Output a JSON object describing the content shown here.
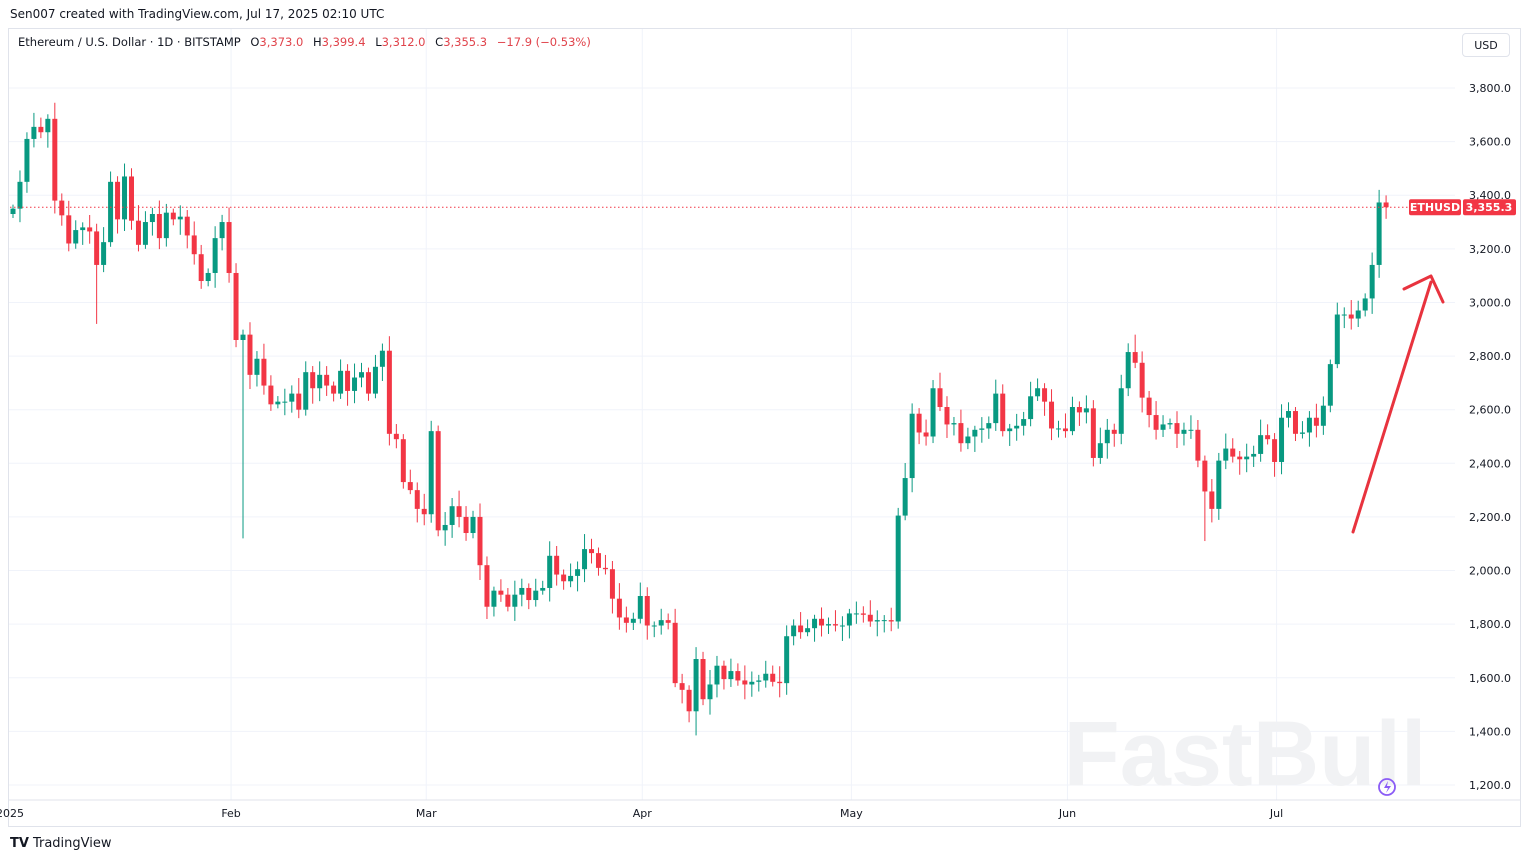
{
  "credit": "Sen007 created with TradingView.com, Jul 17, 2025 02:10 UTC",
  "legend": {
    "symbol": "Ethereum / U.S. Dollar · 1D · BITSTAMP",
    "o_label": "O",
    "o": "3,373.0",
    "h_label": "H",
    "h": "3,399.4",
    "l_label": "L",
    "l": "3,312.0",
    "c_label": "C",
    "c": "3,355.3",
    "change": "−17.9 (−0.53%)"
  },
  "currency": "USD",
  "footer": {
    "brand": "TradingView",
    "logo": "TV"
  },
  "watermark": "FastBull",
  "price_badge": {
    "ticker": "ETHUSD",
    "price": "3,355.3"
  },
  "colors": {
    "up": "#089981",
    "down": "#f23645",
    "arrow": "#e8333e",
    "grid": "#f0f3fa"
  },
  "chart_data": {
    "type": "candlestick",
    "title": "Ethereum / U.S. Dollar · 1D · BITSTAMP",
    "start_date": "2025-01-01",
    "interval": "1D",
    "ylim": [
      1150,
      3950
    ],
    "y_ticks": [
      1200,
      1400,
      1600,
      1800,
      2000,
      2200,
      2400,
      2600,
      2800,
      3000,
      3200,
      3400,
      3600,
      3800
    ],
    "y_tick_labels": [
      "1,200.0",
      "1,400.0",
      "1,600.0",
      "1,800.0",
      "2,000.0",
      "2,200.0",
      "2,400.0",
      "2,600.0",
      "2,800.0",
      "3,000.0",
      "3,200.0",
      "3,400.0",
      "3,600.0",
      "3,800.0"
    ],
    "x_ticks": [
      {
        "label": "2025",
        "day": 0
      },
      {
        "label": "Feb",
        "day": 31
      },
      {
        "label": "Mar",
        "day": 59
      },
      {
        "label": "Apr",
        "day": 90
      },
      {
        "label": "May",
        "day": 120
      },
      {
        "label": "Jun",
        "day": 151
      },
      {
        "label": "Jul",
        "day": 181
      }
    ],
    "first_open": 3330,
    "close": [
      3350,
      3450,
      3610,
      3655,
      3635,
      3685,
      3380,
      3325,
      3220,
      3270,
      3280,
      3265,
      3140,
      3225,
      3450,
      3310,
      3470,
      3305,
      3215,
      3300,
      3330,
      3240,
      3335,
      3310,
      3320,
      3250,
      3180,
      3080,
      3110,
      3240,
      3300,
      3110,
      2860,
      2880,
      2730,
      2790,
      2690,
      2620,
      2630,
      2630,
      2660,
      2600,
      2740,
      2680,
      2730,
      2690,
      2660,
      2745,
      2670,
      2720,
      2740,
      2660,
      2760,
      2820,
      2510,
      2490,
      2330,
      2300,
      2230,
      2210,
      2520,
      2150,
      2170,
      2240,
      2200,
      2140,
      2200,
      2020,
      1865,
      1925,
      1910,
      1865,
      1910,
      1935,
      1890,
      1925,
      1935,
      2055,
      1985,
      1960,
      1980,
      2005,
      2080,
      2065,
      2010,
      2005,
      1895,
      1825,
      1805,
      1820,
      1905,
      1795,
      1795,
      1815,
      1805,
      1580,
      1555,
      1475,
      1670,
      1520,
      1575,
      1645,
      1595,
      1625,
      1590,
      1575,
      1585,
      1590,
      1615,
      1585,
      1580,
      1755,
      1795,
      1770,
      1785,
      1820,
      1795,
      1800,
      1795,
      1795,
      1840,
      1840,
      1835,
      1810,
      1815,
      1815,
      1810,
      2205,
      2345,
      2585,
      2515,
      2500,
      2680,
      2610,
      2545,
      2550,
      2475,
      2500,
      2525,
      2530,
      2550,
      2660,
      2520,
      2530,
      2540,
      2565,
      2650,
      2680,
      2630,
      2530,
      2530,
      2520,
      2610,
      2590,
      2605,
      2420,
      2475,
      2525,
      2510,
      2680,
      2815,
      2775,
      2645,
      2580,
      2525,
      2545,
      2550,
      2510,
      2525,
      2525,
      2410,
      2295,
      2230,
      2410,
      2455,
      2425,
      2415,
      2425,
      2435,
      2505,
      2490,
      2405,
      2570,
      2595,
      2510,
      2515,
      2570,
      2540,
      2615,
      2770,
      2955,
      2955,
      2940,
      2970,
      3015,
      3140,
      3373,
      3355.3
    ],
    "notable_extremes": [
      {
        "day": 6,
        "high": 3745
      },
      {
        "day": 12,
        "low": 2920
      },
      {
        "day": 33,
        "low": 2120
      },
      {
        "day": 98,
        "low": 1385
      },
      {
        "day": 171,
        "low": 2110
      },
      {
        "day": 161,
        "high": 2880
      },
      {
        "day": 196,
        "high": 3420
      },
      {
        "day": 197,
        "high": 3399.4,
        "low": 3312
      }
    ],
    "last_price": 3355.3
  }
}
